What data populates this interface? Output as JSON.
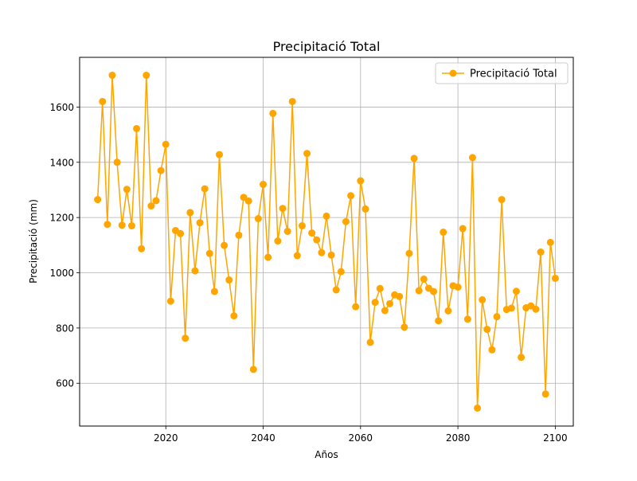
{
  "chart_data": {
    "type": "line",
    "title": "Precipitació Total",
    "xlabel": "Años",
    "ylabel": "Precipitació (mm)",
    "xlim": [
      2002.3,
      2103.7
    ],
    "ylim": [
      445,
      1780
    ],
    "x_ticks": [
      2020,
      2040,
      2060,
      2080,
      2100
    ],
    "y_ticks": [
      600,
      800,
      1000,
      1200,
      1400,
      1600
    ],
    "grid": true,
    "legend_position": "top-right",
    "series": [
      {
        "name": "Precipitació Total",
        "color": "#ffa500",
        "marker": "circle",
        "x": [
          2006,
          2007,
          2008,
          2009,
          2010,
          2011,
          2012,
          2013,
          2014,
          2015,
          2016,
          2017,
          2018,
          2019,
          2020,
          2021,
          2022,
          2023,
          2024,
          2025,
          2026,
          2027,
          2028,
          2029,
          2030,
          2031,
          2032,
          2033,
          2034,
          2035,
          2036,
          2037,
          2038,
          2039,
          2040,
          2041,
          2042,
          2043,
          2044,
          2045,
          2046,
          2047,
          2048,
          2049,
          2050,
          2051,
          2052,
          2053,
          2054,
          2055,
          2056,
          2057,
          2058,
          2059,
          2060,
          2061,
          2062,
          2063,
          2064,
          2065,
          2066,
          2067,
          2068,
          2069,
          2070,
          2071,
          2072,
          2073,
          2074,
          2075,
          2076,
          2077,
          2078,
          2079,
          2080,
          2081,
          2082,
          2083,
          2084,
          2085,
          2086,
          2087,
          2088,
          2089,
          2090,
          2091,
          2092,
          2093,
          2094,
          2095,
          2096,
          2097,
          2098,
          2099,
          2100
        ],
        "values": [
          1265,
          1620,
          1175,
          1715,
          1400,
          1172,
          1302,
          1170,
          1522,
          1087,
          1715,
          1242,
          1261,
          1370,
          1465,
          897,
          1153,
          1142,
          763,
          1218,
          1007,
          1181,
          1304,
          1070,
          932,
          1428,
          1099,
          974,
          844,
          1136,
          1273,
          1260,
          650,
          1196,
          1320,
          1056,
          1577,
          1115,
          1233,
          1150,
          1620,
          1062,
          1170,
          1432,
          1144,
          1119,
          1073,
          1205,
          1064,
          938,
          1004,
          1185,
          1279,
          877,
          1333,
          1231,
          748,
          893,
          943,
          863,
          888,
          920,
          914,
          803,
          1070,
          1414,
          935,
          977,
          944,
          932,
          826,
          1147,
          862,
          953,
          948,
          1160,
          832,
          1417,
          510,
          902,
          795,
          721,
          841,
          1265,
          867,
          872,
          933,
          694,
          873,
          880,
          868,
          1075,
          561,
          1110,
          980
        ]
      }
    ]
  }
}
